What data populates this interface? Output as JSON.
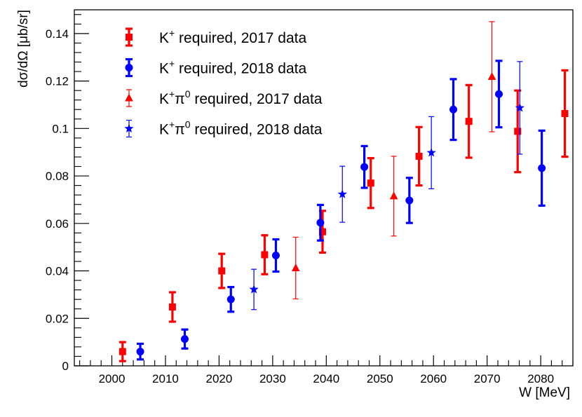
{
  "chart_data": {
    "type": "scatter",
    "xlabel": "W [MeV]",
    "ylabel": "dσ/dΩ [μb/sr]",
    "xlim": [
      1993,
      2086
    ],
    "ylim": [
      0,
      0.15
    ],
    "x_major_ticks": [
      2000,
      2010,
      2020,
      2030,
      2040,
      2050,
      2060,
      2070,
      2080
    ],
    "x_tick_labels": [
      "2000",
      "2010",
      "2020",
      "2030",
      "2040",
      "2050",
      "2060",
      "2070",
      "2080"
    ],
    "y_major_ticks": [
      0,
      0.02,
      0.04,
      0.06,
      0.08,
      0.1,
      0.12,
      0.14
    ],
    "y_tick_labels": [
      "0",
      "0.02",
      "0.04",
      "0.06",
      "0.08",
      "0.1",
      "0.12",
      "0.14"
    ],
    "grid": false,
    "legend_position": "top-left",
    "series": [
      {
        "name": "K+ required, 2017 data",
        "legend_base": "K",
        "legend_sup": "+",
        "legend_tail": " required, 2017 data",
        "marker": "square",
        "color": "#ff0000",
        "error_style": "thick",
        "points": [
          {
            "x": 2002.0,
            "y": 0.006,
            "err": 0.004
          },
          {
            "x": 2011.3,
            "y": 0.0248,
            "err": 0.0062
          },
          {
            "x": 2020.5,
            "y": 0.04,
            "err": 0.0072
          },
          {
            "x": 2028.5,
            "y": 0.0468,
            "err": 0.0082
          },
          {
            "x": 2039.3,
            "y": 0.0565,
            "err": 0.0088
          },
          {
            "x": 2048.3,
            "y": 0.077,
            "err": 0.0105
          },
          {
            "x": 2057.3,
            "y": 0.0883,
            "err": 0.0123
          },
          {
            "x": 2066.6,
            "y": 0.103,
            "err": 0.0153
          },
          {
            "x": 2075.7,
            "y": 0.0988,
            "err": 0.0172
          },
          {
            "x": 2084.5,
            "y": 0.1063,
            "err": 0.0182
          }
        ]
      },
      {
        "name": "K+ required, 2018 data",
        "legend_base": "K",
        "legend_sup": "+",
        "legend_tail": " required, 2018 data",
        "marker": "circle",
        "color": "#0000ff",
        "error_style": "thick",
        "points": [
          {
            "x": 2005.3,
            "y": 0.006,
            "err": 0.0033
          },
          {
            "x": 2013.6,
            "y": 0.0113,
            "err": 0.004
          },
          {
            "x": 2022.2,
            "y": 0.028,
            "err": 0.0052
          },
          {
            "x": 2030.6,
            "y": 0.0465,
            "err": 0.0068
          },
          {
            "x": 2038.9,
            "y": 0.0603,
            "err": 0.0075
          },
          {
            "x": 2047.1,
            "y": 0.0838,
            "err": 0.0088
          },
          {
            "x": 2055.5,
            "y": 0.0697,
            "err": 0.0095
          },
          {
            "x": 2063.7,
            "y": 0.108,
            "err": 0.0128
          },
          {
            "x": 2072.2,
            "y": 0.1145,
            "err": 0.014
          },
          {
            "x": 2080.2,
            "y": 0.0833,
            "err": 0.0158
          }
        ]
      },
      {
        "name": "K+π0 required, 2017 data",
        "legend_base": "K",
        "legend_sup": "+",
        "legend_mid": "π",
        "legend_sup2": "0",
        "legend_tail": " required, 2017 data",
        "marker": "triangle",
        "color": "#ff0000",
        "error_style": "thin",
        "points": [
          {
            "x": 2034.3,
            "y": 0.0412,
            "err": 0.013
          },
          {
            "x": 2052.6,
            "y": 0.0715,
            "err": 0.0168
          },
          {
            "x": 2070.9,
            "y": 0.1218,
            "err": 0.0232
          }
        ]
      },
      {
        "name": "K+π0 required, 2018 data",
        "legend_base": "K",
        "legend_sup": "+",
        "legend_mid": "π",
        "legend_sup2": "0",
        "legend_tail": " required, 2018 data",
        "marker": "star",
        "color": "#0000ff",
        "error_style": "thin",
        "points": [
          {
            "x": 2026.5,
            "y": 0.0322,
            "err": 0.0085
          },
          {
            "x": 2043.0,
            "y": 0.0723,
            "err": 0.0118
          },
          {
            "x": 2059.6,
            "y": 0.0898,
            "err": 0.0152
          },
          {
            "x": 2076.1,
            "y": 0.1087,
            "err": 0.0195
          }
        ]
      }
    ]
  }
}
